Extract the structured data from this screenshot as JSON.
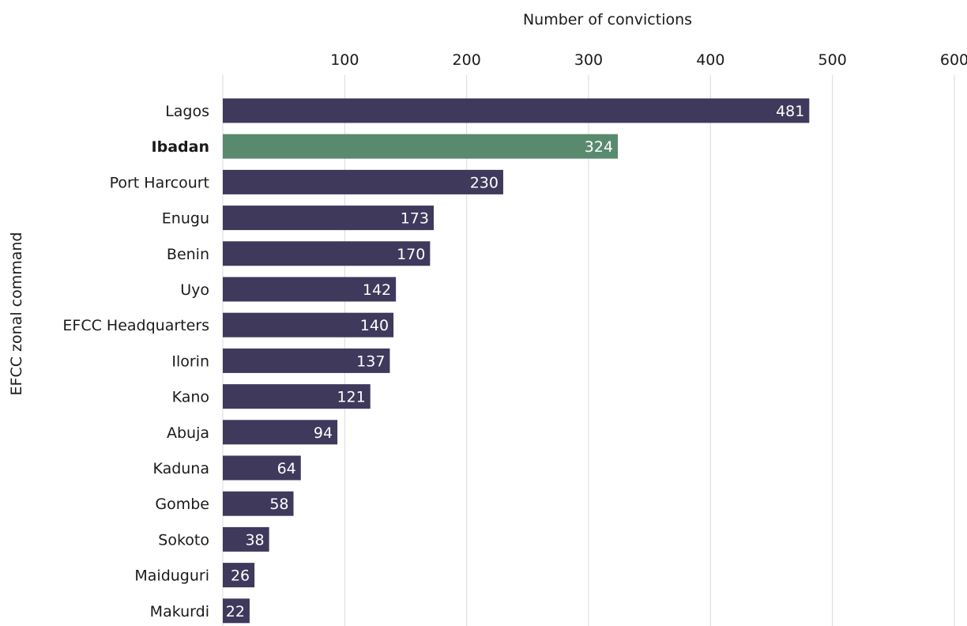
{
  "chart_data": {
    "type": "bar",
    "orientation": "horizontal",
    "xlabel": "Number of convictions",
    "ylabel": "EFCC zonal command",
    "xlim": [
      0,
      600
    ],
    "xticks": [
      100,
      200,
      300,
      400,
      500,
      600
    ],
    "grid": "vertical",
    "x_axis_position": "top",
    "categories": [
      "Lagos",
      "Ibadan",
      "Port Harcourt",
      "Enugu",
      "Benin",
      "Uyo",
      "EFCC Headquarters",
      "Ilorin",
      "Kano",
      "Abuja",
      "Kaduna",
      "Gombe",
      "Sokoto",
      "Maiduguri",
      "Makurdi"
    ],
    "values": [
      481,
      324,
      230,
      173,
      170,
      142,
      140,
      137,
      121,
      94,
      64,
      58,
      38,
      26,
      22
    ],
    "highlight_category": "Ibadan",
    "data_labels": true
  },
  "colors": {
    "bar": "#3f395c",
    "highlight": "#5a8a6e",
    "grid": "#d9d9d9",
    "label_inside": "#ffffff",
    "text": "#1a1a1a"
  }
}
